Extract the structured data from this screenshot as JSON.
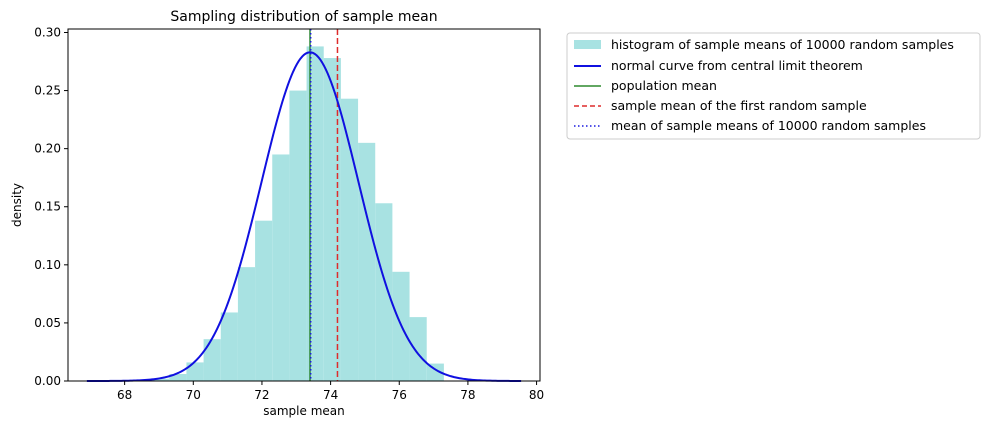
{
  "chart_data": {
    "type": "bar",
    "title": "Sampling distribution of sample mean",
    "xlabel": "sample mean",
    "ylabel": "density",
    "xlim": [
      66.35,
      80.1
    ],
    "ylim": [
      0,
      0.303
    ],
    "xticks": [
      68,
      70,
      72,
      74,
      76,
      78,
      80
    ],
    "yticks": [
      0.0,
      0.05,
      0.1,
      0.15,
      0.2,
      0.25,
      0.3
    ],
    "grid": false,
    "legend_position": "outside-right-top",
    "histogram": {
      "name": "histogram of sample means of 10000 random samples",
      "color": "#a8e2e2",
      "bin_edges": [
        68.8,
        69.3,
        69.8,
        70.3,
        70.8,
        71.3,
        71.8,
        72.3,
        72.8,
        73.3,
        73.8,
        74.3,
        74.8,
        75.3,
        75.8,
        76.3,
        76.8,
        77.3
      ],
      "values": [
        0.002,
        0.006,
        0.016,
        0.036,
        0.059,
        0.098,
        0.138,
        0.195,
        0.25,
        0.288,
        0.278,
        0.243,
        0.205,
        0.153,
        0.094,
        0.055,
        0.015
      ]
    },
    "normal_curve": {
      "name": "normal curve from central limit theorem",
      "color": "#1010e0",
      "mean": 73.4,
      "sd": 1.41,
      "x_range": [
        66.9,
        79.55
      ]
    },
    "vlines": [
      {
        "name": "population mean",
        "x": 73.4,
        "color": "#2f8a2f",
        "style": "solid"
      },
      {
        "name": "sample mean of the first random sample",
        "x": 74.2,
        "color": "#dd2b2b",
        "style": "dashed"
      },
      {
        "name": "mean of sample means of 10000 random samples",
        "x": 73.42,
        "color": "#1a1ae0",
        "style": "dotted"
      }
    ],
    "legend": [
      "histogram of sample means of 10000 random samples",
      "normal curve from central limit theorem",
      "population mean",
      "sample mean of the first random sample",
      "mean of sample means of 10000 random samples"
    ]
  }
}
